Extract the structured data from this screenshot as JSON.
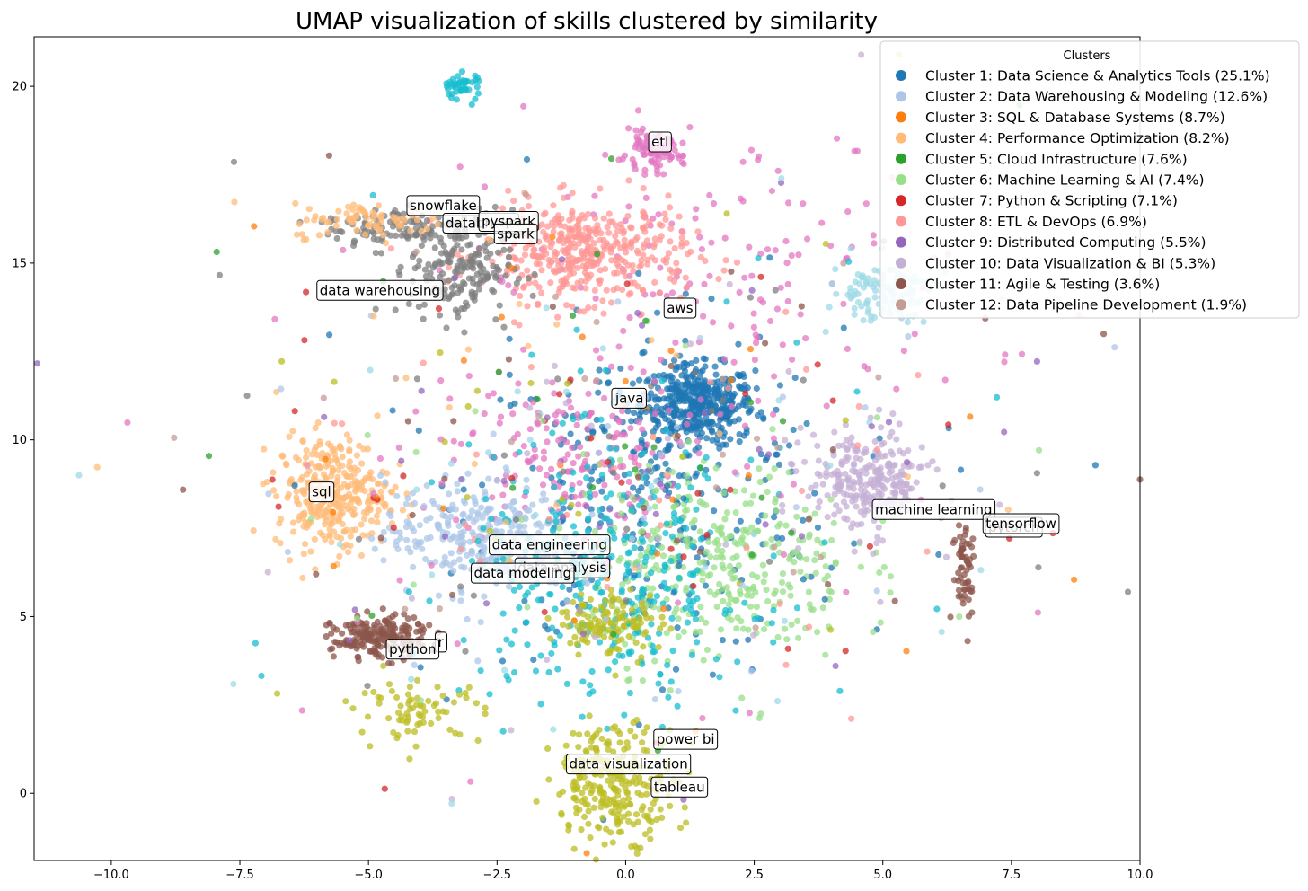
{
  "chart_data": {
    "type": "scatter",
    "title": "UMAP visualization of skills clustered by similarity",
    "xlabel": "",
    "ylabel": "",
    "xlim": [
      -11.5,
      10.0
    ],
    "ylim": [
      -1.9,
      21.4
    ],
    "grid": false,
    "x_ticks": [
      -10.0,
      -7.5,
      -5.0,
      -2.5,
      0.0,
      2.5,
      5.0,
      7.5,
      10.0
    ],
    "x_tick_labels": [
      "−10.0",
      "−7.5",
      "−5.0",
      "−2.5",
      "0.0",
      "2.5",
      "5.0",
      "7.5",
      "10.0"
    ],
    "y_ticks": [
      0,
      5,
      10,
      15,
      20
    ],
    "y_tick_labels": [
      "0",
      "5",
      "10",
      "15",
      "20"
    ],
    "legend": {
      "title": "Clusters",
      "placement": "top-right",
      "entries": [
        {
          "label": "Cluster 1: Data Science & Analytics Tools (25.1%)",
          "color": "#1f77b4"
        },
        {
          "label": "Cluster 2: Data Warehousing & Modeling (12.6%)",
          "color": "#aec7e8"
        },
        {
          "label": "Cluster 3: SQL & Database Systems (8.7%)",
          "color": "#ff7f0e"
        },
        {
          "label": "Cluster 4: Performance Optimization (8.2%)",
          "color": "#ffbb78"
        },
        {
          "label": "Cluster 5: Cloud Infrastructure (7.6%)",
          "color": "#2ca02c"
        },
        {
          "label": "Cluster 6: Machine Learning & AI (7.4%)",
          "color": "#98df8a"
        },
        {
          "label": "Cluster 7: Python & Scripting (7.1%)",
          "color": "#d62728"
        },
        {
          "label": "Cluster 8: ETL & DevOps (6.9%)",
          "color": "#ff9896"
        },
        {
          "label": "Cluster 9: Distributed Computing (5.5%)",
          "color": "#9467bd"
        },
        {
          "label": "Cluster 10: Data Visualization & BI (5.3%)",
          "color": "#c5b0d5"
        },
        {
          "label": "Cluster 11: Agile & Testing (3.6%)",
          "color": "#8c564b"
        },
        {
          "label": "Cluster 12: Data Pipeline Development (1.9%)",
          "color": "#c49c94"
        }
      ]
    },
    "extra_colors": {
      "pink": "#e377c2",
      "gray": "#7f7f7f",
      "olive": "#bcbd22",
      "cyan": "#17becf",
      "lightcyan": "#9edae5"
    },
    "blobs": [
      {
        "cx": 1.4,
        "cy": 11.0,
        "sx": 0.55,
        "sy": 0.55,
        "n": 420,
        "color": "#1f77b4"
      },
      {
        "cx": 0.6,
        "cy": 8.5,
        "sx": 1.8,
        "sy": 2.3,
        "n": 260,
        "color": "#1f77b4"
      },
      {
        "cx": -1.2,
        "cy": 9.5,
        "sx": 1.1,
        "sy": 1.2,
        "n": 180,
        "color": "#e377c2"
      },
      {
        "cx": 2.0,
        "cy": 14.5,
        "sx": 2.5,
        "sy": 2.2,
        "n": 160,
        "color": "#e377c2"
      },
      {
        "cx": -0.8,
        "cy": 15.3,
        "sx": 1.0,
        "sy": 0.7,
        "n": 420,
        "color": "#ff9896"
      },
      {
        "cx": -3.2,
        "cy": 14.9,
        "sx": 0.5,
        "sy": 0.8,
        "n": 200,
        "color": "#7f7f7f"
      },
      {
        "cx": -4.5,
        "cy": 16.0,
        "sx": 0.7,
        "sy": 0.3,
        "n": 110,
        "color": "#7f7f7f"
      },
      {
        "cx": -4.9,
        "cy": 16.2,
        "sx": 0.8,
        "sy": 0.25,
        "n": 80,
        "color": "#ffbb78"
      },
      {
        "cx": -5.7,
        "cy": 8.5,
        "sx": 0.55,
        "sy": 0.8,
        "n": 320,
        "color": "#ffbb78"
      },
      {
        "cx": -2.9,
        "cy": 7.3,
        "sx": 0.9,
        "sy": 0.8,
        "n": 300,
        "color": "#aec7e8"
      },
      {
        "cx": 1.8,
        "cy": 6.5,
        "sx": 1.3,
        "sy": 1.4,
        "n": 360,
        "color": "#98df8a"
      },
      {
        "cx": -0.3,
        "cy": 6.0,
        "sx": 1.4,
        "sy": 1.8,
        "n": 320,
        "color": "#17becf"
      },
      {
        "cx": 4.7,
        "cy": 8.8,
        "sx": 0.6,
        "sy": 0.7,
        "n": 260,
        "color": "#c5b0d5"
      },
      {
        "cx": -4.8,
        "cy": 4.4,
        "sx": 0.45,
        "sy": 0.3,
        "n": 200,
        "color": "#8c564b"
      },
      {
        "cx": -0.2,
        "cy": 0.3,
        "sx": 0.6,
        "sy": 0.8,
        "n": 260,
        "color": "#bcbd22"
      },
      {
        "cx": -0.3,
        "cy": 4.8,
        "sx": 0.5,
        "sy": 0.5,
        "n": 120,
        "color": "#bcbd22"
      },
      {
        "cx": 5.0,
        "cy": 14.2,
        "sx": 0.5,
        "sy": 0.4,
        "n": 120,
        "color": "#9edae5"
      },
      {
        "cx": 0.5,
        "cy": 18.1,
        "sx": 0.3,
        "sy": 0.25,
        "n": 90,
        "color": "#e377c2"
      },
      {
        "cx": -3.2,
        "cy": 20.0,
        "sx": 0.2,
        "sy": 0.2,
        "n": 45,
        "color": "#17becf"
      },
      {
        "cx": -4.0,
        "cy": 2.3,
        "sx": 0.6,
        "sy": 0.4,
        "n": 70,
        "color": "#bcbd22"
      },
      {
        "cx": 6.6,
        "cy": 6.4,
        "sx": 0.12,
        "sy": 0.8,
        "n": 60,
        "color": "#8c564b"
      },
      {
        "cx": 0.0,
        "cy": 9.0,
        "sx": 3.8,
        "sy": 3.6,
        "n": 520,
        "color": "mixed"
      }
    ],
    "annotations": [
      {
        "text": "etl",
        "x": 0.5,
        "y": 18.3
      },
      {
        "text": "snowflake",
        "x": -4.2,
        "y": 16.5
      },
      {
        "text": "databricks",
        "x": -3.5,
        "y": 16.0
      },
      {
        "text": "pyspark",
        "x": -2.8,
        "y": 16.05
      },
      {
        "text": "spark",
        "x": -2.5,
        "y": 15.7
      },
      {
        "text": "data warehousing",
        "x": -5.95,
        "y": 14.1
      },
      {
        "text": "aws",
        "x": 0.8,
        "y": 13.6
      },
      {
        "text": "java",
        "x": -0.2,
        "y": 11.05
      },
      {
        "text": "sql",
        "x": -6.1,
        "y": 8.4
      },
      {
        "text": "machine learning",
        "x": 4.85,
        "y": 7.9
      },
      {
        "text": "pytorch",
        "x": 7.05,
        "y": 7.4
      },
      {
        "text": "tensorflow",
        "x": 7.0,
        "y": 7.5
      },
      {
        "text": "data engineering",
        "x": -2.6,
        "y": 6.9
      },
      {
        "text": "data analysis",
        "x": -2.1,
        "y": 6.25
      },
      {
        "text": "data modeling",
        "x": -2.95,
        "y": 6.1
      },
      {
        "text": "r",
        "x": -3.65,
        "y": 4.15
      },
      {
        "text": "python",
        "x": -4.6,
        "y": 3.95
      },
      {
        "text": "power bi",
        "x": 0.6,
        "y": 1.4
      },
      {
        "text": "data visualization",
        "x": -1.1,
        "y": 0.7
      },
      {
        "text": "tableau",
        "x": 0.55,
        "y": 0.05
      }
    ]
  }
}
